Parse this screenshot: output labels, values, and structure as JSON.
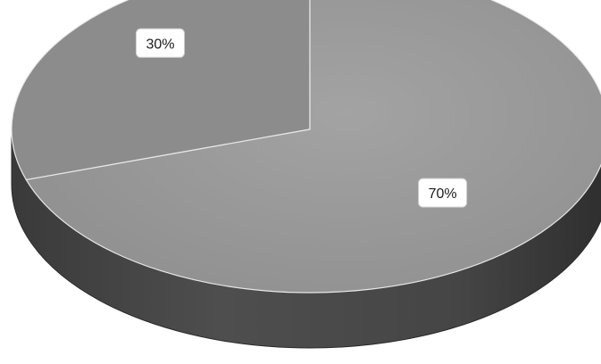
{
  "chart_data": {
    "type": "pie",
    "style": "3d",
    "slices": [
      {
        "label": "30%",
        "value": 30,
        "color": "#8c8c8c"
      },
      {
        "label": "70%",
        "value": 70,
        "color": "#9a9a9a"
      }
    ],
    "title": "",
    "legend": "none"
  }
}
